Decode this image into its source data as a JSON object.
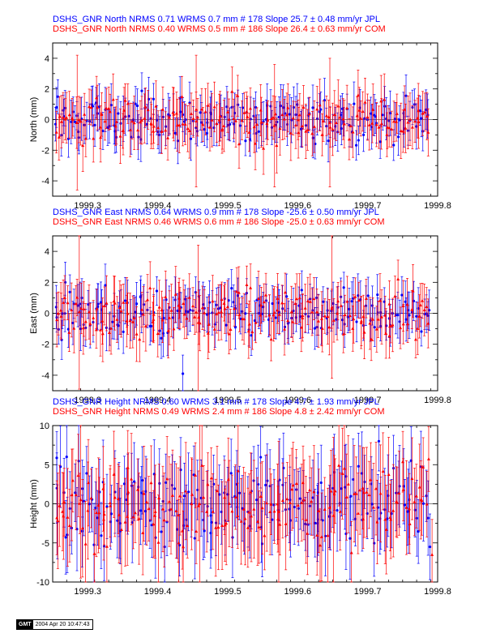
{
  "colors": {
    "jpl": "#0000ff",
    "com": "#ff0000",
    "axis": "#000000",
    "zero": "#000000"
  },
  "footer": {
    "logo_text": "GMT",
    "timestamp": "2004 Apr 20 10:47:43"
  },
  "chart_data": [
    {
      "type": "scatter",
      "panel": "north",
      "ylabel": "North (mm)",
      "xlim": [
        1999.25,
        1999.8
      ],
      "ylim": [
        -5,
        5
      ],
      "xticks": [
        "1999.3",
        "1999.4",
        "1999.5",
        "1999.6",
        "1999.7",
        "1999.8"
      ],
      "yticks": [
        "-4",
        "-2",
        "0",
        "2",
        "4"
      ],
      "headers": [
        "DSHS_GNR North NRMS 0.71 WRMS  0.7 mm # 178 Slope   25.7 ±  0.48 mm/yr JPL",
        "DSHS_GNR North NRMS 0.40 WRMS  0.5 mm # 186 Slope   26.4 ±  0.63 mm/yr COM"
      ],
      "series": [
        {
          "name": "JPL",
          "count": 178,
          "nrms": 0.71,
          "wrms_mm": 0.7,
          "slope": 25.7,
          "slope_sigma": 0.48,
          "sample_points": [
            {
              "x": 1999.254,
              "y": -0.3,
              "err": 1.1
            },
            {
              "x": 1999.265,
              "y": 0.6,
              "err": 1.0
            },
            {
              "x": 1999.287,
              "y": -0.8,
              "err": 1.2
            },
            {
              "x": 1999.312,
              "y": 1.1,
              "err": 1.0
            },
            {
              "x": 1999.338,
              "y": -0.4,
              "err": 1.2
            },
            {
              "x": 1999.371,
              "y": 0.9,
              "err": 1.1
            },
            {
              "x": 1999.402,
              "y": -1.0,
              "err": 1.2
            },
            {
              "x": 1999.433,
              "y": 0.5,
              "err": 1.0
            },
            {
              "x": 1999.471,
              "y": -0.2,
              "err": 1.1
            },
            {
              "x": 1999.506,
              "y": 0.8,
              "err": 1.0
            },
            {
              "x": 1999.541,
              "y": -0.9,
              "err": 1.2
            },
            {
              "x": 1999.582,
              "y": 0.4,
              "err": 1.1
            },
            {
              "x": 1999.622,
              "y": -1.2,
              "err": 1.3
            },
            {
              "x": 1999.664,
              "y": 0.7,
              "err": 1.0
            },
            {
              "x": 1999.711,
              "y": 0.2,
              "err": 1.1
            },
            {
              "x": 1999.752,
              "y": -0.6,
              "err": 1.2
            },
            {
              "x": 1999.786,
              "y": 0.3,
              "err": 1.0
            }
          ]
        },
        {
          "name": "COM",
          "count": 186,
          "nrms": 0.4,
          "wrms_mm": 0.5,
          "slope": 26.4,
          "slope_sigma": 0.63,
          "sample_points": [
            {
              "x": 1999.26,
              "y": 0.2,
              "err": 1.3
            },
            {
              "x": 1999.285,
              "y": -0.2,
              "err": 4.4
            },
            {
              "x": 1999.318,
              "y": -0.5,
              "err": 1.4
            },
            {
              "x": 1999.352,
              "y": 0.6,
              "err": 1.5
            },
            {
              "x": 1999.391,
              "y": -0.3,
              "err": 1.3
            },
            {
              "x": 1999.427,
              "y": 0.4,
              "err": 1.4
            },
            {
              "x": 1999.455,
              "y": -0.1,
              "err": 4.3
            },
            {
              "x": 1999.492,
              "y": -0.7,
              "err": 1.5
            },
            {
              "x": 1999.527,
              "y": 0.5,
              "err": 1.3
            },
            {
              "x": 1999.567,
              "y": -0.4,
              "err": 4.0
            },
            {
              "x": 1999.603,
              "y": 0.3,
              "err": 1.4
            },
            {
              "x": 1999.646,
              "y": -0.2,
              "err": 4.2
            },
            {
              "x": 1999.688,
              "y": 0.6,
              "err": 1.5
            },
            {
              "x": 1999.728,
              "y": -0.5,
              "err": 1.4
            },
            {
              "x": 1999.771,
              "y": 0.1,
              "err": 1.3
            }
          ]
        }
      ]
    },
    {
      "type": "scatter",
      "panel": "east",
      "ylabel": "East (mm)",
      "xlim": [
        1999.25,
        1999.8
      ],
      "ylim": [
        -5,
        5
      ],
      "xticks": [
        "1999.3",
        "1999.4",
        "1999.5",
        "1999.6",
        "1999.7",
        "1999.8"
      ],
      "yticks": [
        "-4",
        "-2",
        "0",
        "2",
        "4"
      ],
      "headers": [
        "DSHS_GNR East NRMS 0.64 WRMS  0.9 mm # 178 Slope  -25.6 ±  0.50 mm/yr JPL",
        "DSHS_GNR East NRMS 0.46 WRMS  0.6 mm # 186 Slope  -25.0 ±  0.63 mm/yr COM"
      ],
      "series": [
        {
          "name": "JPL",
          "count": 178,
          "nrms": 0.64,
          "wrms_mm": 0.9,
          "slope": -25.6,
          "slope_sigma": 0.5,
          "sample_points": [
            {
              "x": 1999.255,
              "y": 0.4,
              "err": 1.4
            },
            {
              "x": 1999.268,
              "y": 2.0,
              "err": 1.3
            },
            {
              "x": 1999.29,
              "y": -1.0,
              "err": 1.4
            },
            {
              "x": 1999.315,
              "y": 0.6,
              "err": 1.3
            },
            {
              "x": 1999.344,
              "y": -0.8,
              "err": 1.5
            },
            {
              "x": 1999.376,
              "y": 1.1,
              "err": 1.3
            },
            {
              "x": 1999.408,
              "y": -1.3,
              "err": 1.5
            },
            {
              "x": 1999.436,
              "y": -3.9,
              "err": 1.2
            },
            {
              "x": 1999.474,
              "y": 0.7,
              "err": 1.4
            },
            {
              "x": 1999.511,
              "y": -0.9,
              "err": 1.4
            },
            {
              "x": 1999.546,
              "y": 0.5,
              "err": 1.3
            },
            {
              "x": 1999.587,
              "y": -0.6,
              "err": 1.4
            },
            {
              "x": 1999.627,
              "y": 1.0,
              "err": 1.3
            },
            {
              "x": 1999.667,
              "y": -0.7,
              "err": 1.5
            },
            {
              "x": 1999.714,
              "y": 1.2,
              "err": 1.3
            },
            {
              "x": 1999.755,
              "y": -0.4,
              "err": 1.4
            },
            {
              "x": 1999.788,
              "y": 0.2,
              "err": 1.3
            }
          ]
        },
        {
          "name": "COM",
          "count": 186,
          "nrms": 0.46,
          "wrms_mm": 0.6,
          "slope": -25.0,
          "slope_sigma": 0.63,
          "sample_points": [
            {
              "x": 1999.262,
              "y": -0.2,
              "err": 1.5
            },
            {
              "x": 1999.288,
              "y": 0.1,
              "err": 5.0
            },
            {
              "x": 1999.321,
              "y": -0.5,
              "err": 1.5
            },
            {
              "x": 1999.356,
              "y": 0.7,
              "err": 1.6
            },
            {
              "x": 1999.394,
              "y": -0.4,
              "err": 1.5
            },
            {
              "x": 1999.43,
              "y": 0.5,
              "err": 1.5
            },
            {
              "x": 1999.458,
              "y": -0.6,
              "err": 5.0
            },
            {
              "x": 1999.496,
              "y": 0.3,
              "err": 1.6
            },
            {
              "x": 1999.531,
              "y": -0.7,
              "err": 1.5
            },
            {
              "x": 1999.571,
              "y": 0.2,
              "err": 1.5
            },
            {
              "x": 1999.607,
              "y": -0.3,
              "err": 1.5
            },
            {
              "x": 1999.649,
              "y": 0.4,
              "err": 4.6
            },
            {
              "x": 1999.691,
              "y": -0.5,
              "err": 1.6
            },
            {
              "x": 1999.731,
              "y": 0.6,
              "err": 1.5
            },
            {
              "x": 1999.774,
              "y": -0.2,
              "err": 1.4
            }
          ]
        }
      ]
    },
    {
      "type": "scatter",
      "panel": "height",
      "ylabel": "Height (mm)",
      "xlim": [
        1999.25,
        1999.8
      ],
      "ylim": [
        -10,
        10
      ],
      "xticks": [
        "1999.3",
        "1999.4",
        "1999.5",
        "1999.6",
        "1999.7",
        "1999.8"
      ],
      "yticks": [
        "-10",
        "-5",
        "0",
        "5",
        "10"
      ],
      "headers": [
        "DSHS_GNR Height NRMS 0.60 WRMS  3.1 mm # 178 Slope    4.7 ±  1.93 mm/yr JPL",
        "DSHS_GNR Height NRMS 0.49 WRMS  2.4 mm # 186 Slope    4.8 ±  2.42 mm/yr COM"
      ],
      "series": [
        {
          "name": "JPL",
          "count": 178,
          "nrms": 0.6,
          "wrms_mm": 3.1,
          "slope": 4.7,
          "slope_sigma": 1.93,
          "sample_points": [
            {
              "x": 1999.256,
              "y": 2.0,
              "err": 4.5
            },
            {
              "x": 1999.27,
              "y": 6.0,
              "err": 4.0
            },
            {
              "x": 1999.292,
              "y": -3.5,
              "err": 4.6
            },
            {
              "x": 1999.317,
              "y": 1.5,
              "err": 4.2
            },
            {
              "x": 1999.346,
              "y": -2.5,
              "err": 4.5
            },
            {
              "x": 1999.378,
              "y": 3.0,
              "err": 4.3
            },
            {
              "x": 1999.41,
              "y": -5.5,
              "err": 4.5
            },
            {
              "x": 1999.438,
              "y": 1.0,
              "err": 4.2
            },
            {
              "x": 1999.476,
              "y": -1.5,
              "err": 4.4
            },
            {
              "x": 1999.513,
              "y": 2.5,
              "err": 4.3
            },
            {
              "x": 1999.548,
              "y": -3.0,
              "err": 4.5
            },
            {
              "x": 1999.589,
              "y": 0.5,
              "err": 4.2
            },
            {
              "x": 1999.629,
              "y": -2.0,
              "err": 4.6
            },
            {
              "x": 1999.669,
              "y": 3.5,
              "err": 4.1
            },
            {
              "x": 1999.716,
              "y": 8.0,
              "err": 3.8
            },
            {
              "x": 1999.757,
              "y": -1.0,
              "err": 4.3
            },
            {
              "x": 1999.789,
              "y": -5.5,
              "err": 4.2
            }
          ]
        },
        {
          "name": "COM",
          "count": 186,
          "nrms": 0.49,
          "wrms_mm": 2.4,
          "slope": 4.8,
          "slope_sigma": 2.42,
          "sample_points": [
            {
              "x": 1999.264,
              "y": -1.0,
              "err": 5.0
            },
            {
              "x": 1999.29,
              "y": 0.5,
              "err": 10.0
            },
            {
              "x": 1999.323,
              "y": -2.0,
              "err": 5.2
            },
            {
              "x": 1999.358,
              "y": 1.5,
              "err": 5.0
            },
            {
              "x": 1999.396,
              "y": -1.5,
              "err": 5.2
            },
            {
              "x": 1999.432,
              "y": 1.0,
              "err": 5.0
            },
            {
              "x": 1999.46,
              "y": 0.0,
              "err": 10.0
            },
            {
              "x": 1999.498,
              "y": -2.5,
              "err": 5.3
            },
            {
              "x": 1999.533,
              "y": 1.5,
              "err": 5.0
            },
            {
              "x": 1999.573,
              "y": -1.0,
              "err": 9.0
            },
            {
              "x": 1999.609,
              "y": 0.5,
              "err": 5.1
            },
            {
              "x": 1999.651,
              "y": -1.5,
              "err": 10.0
            },
            {
              "x": 1999.693,
              "y": 2.0,
              "err": 5.2
            },
            {
              "x": 1999.733,
              "y": -2.0,
              "err": 5.0
            },
            {
              "x": 1999.776,
              "y": 0.5,
              "err": 5.0
            },
            {
              "x": 1999.792,
              "y": -6.5,
              "err": 4.5
            }
          ]
        }
      ]
    }
  ]
}
